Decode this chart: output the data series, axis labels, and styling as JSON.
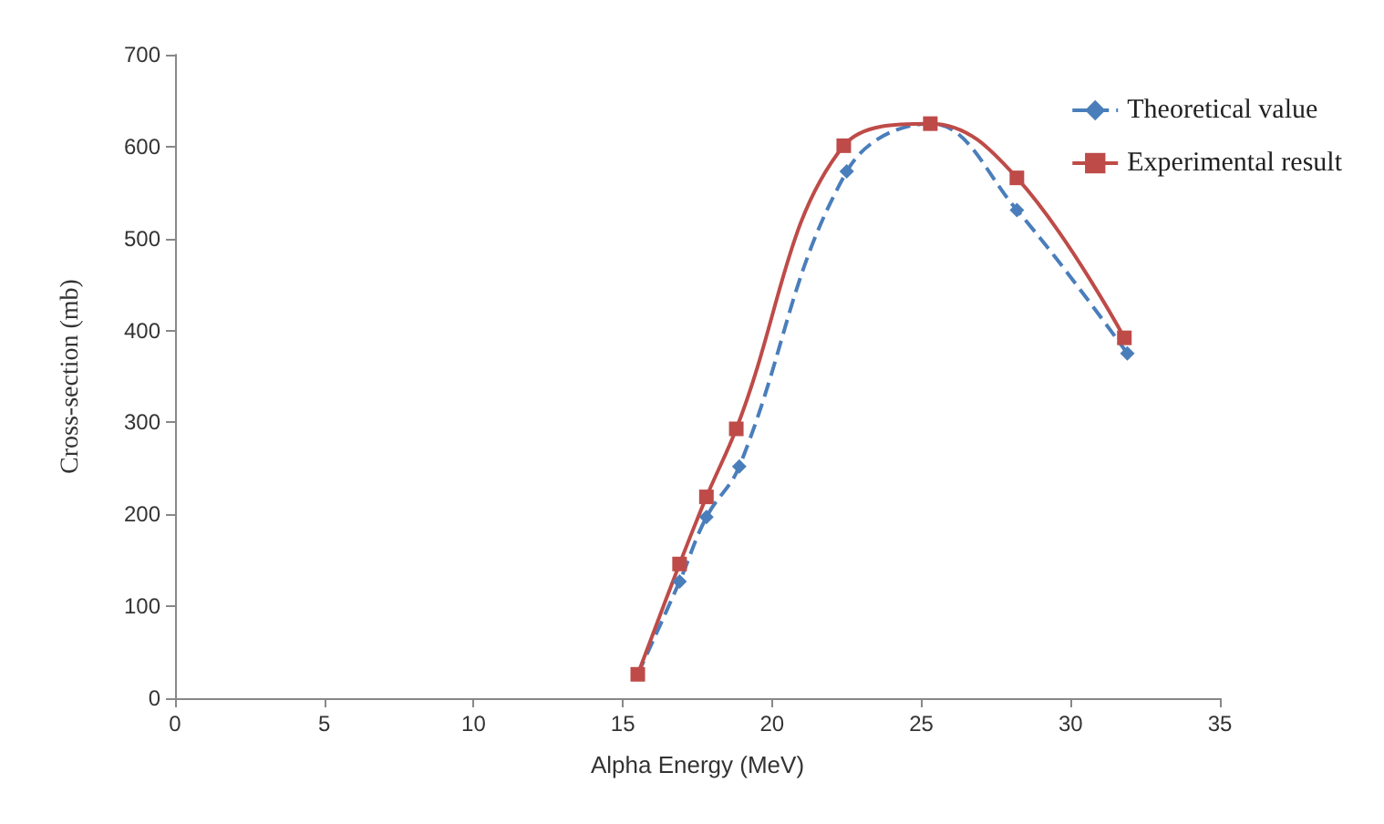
{
  "chart_data": {
    "type": "line",
    "xlabel": "Alpha Energy (MeV)",
    "ylabel": "Cross-section (mb)",
    "xlim": [
      0,
      35
    ],
    "xticks": [
      0,
      5,
      10,
      15,
      20,
      25,
      30,
      35
    ],
    "ylim": [
      0,
      700
    ],
    "yticks": [
      0,
      100,
      200,
      300,
      400,
      500,
      600,
      700
    ],
    "grid": false,
    "legend": "top right",
    "series": [
      {
        "name": "Theoretical value",
        "color": "#4a7ebb",
        "marker": "diamond",
        "line_style": "dashed",
        "x": [
          15.5,
          16.9,
          17.8,
          18.9,
          22.5,
          25.3,
          28.2,
          31.9
        ],
        "values": [
          26,
          127,
          197,
          252,
          573,
          625,
          531,
          375
        ]
      },
      {
        "name": "Experimental result",
        "color": "#be4b48",
        "marker": "square",
        "line_style": "solid",
        "x": [
          15.5,
          16.9,
          17.8,
          18.8,
          22.4,
          25.3,
          28.2,
          31.8
        ],
        "values": [
          26,
          146,
          219,
          293,
          601,
          625,
          566,
          392
        ]
      }
    ]
  }
}
